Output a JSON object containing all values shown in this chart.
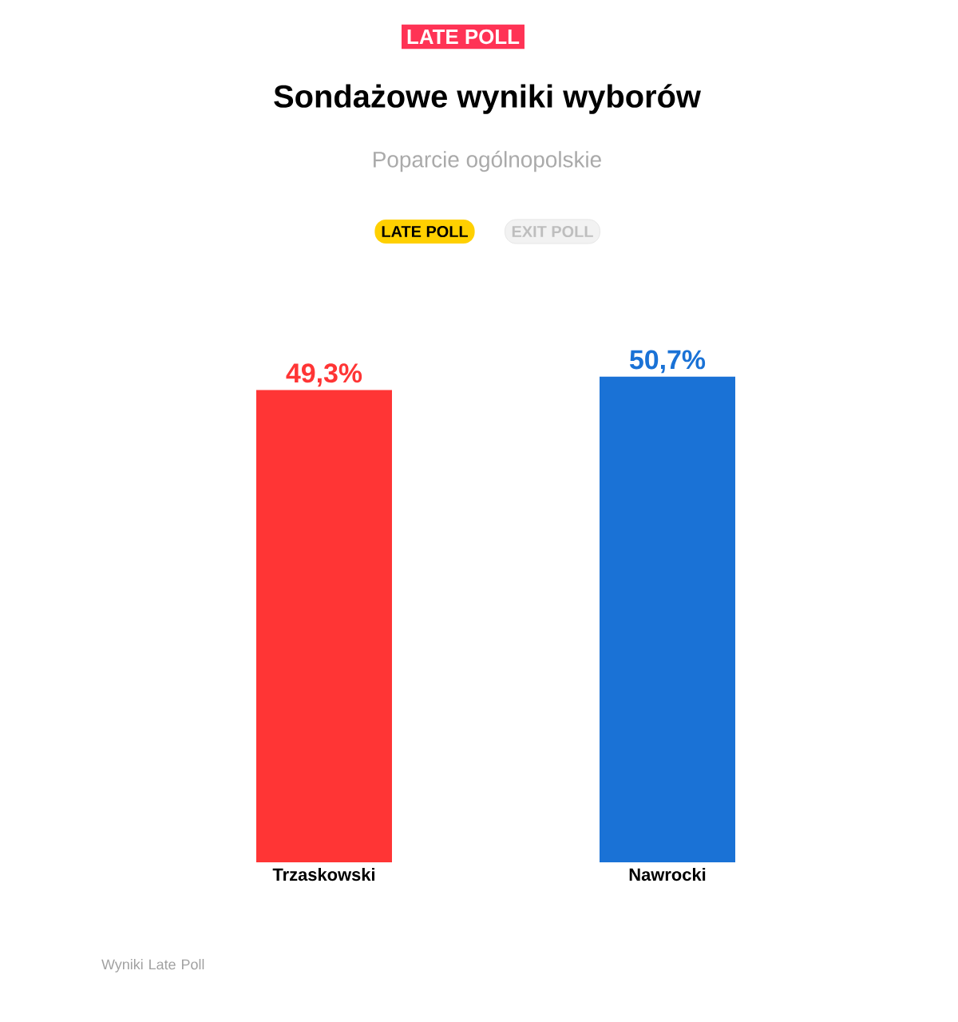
{
  "chart_data": {
    "type": "bar",
    "title": "Sondażowe wyniki wyborów",
    "subtitle": "Poparcie ogólnopolskie",
    "categories": [
      "Trzaskowski",
      "Nawrocki"
    ],
    "values": [
      49.3,
      50.7
    ],
    "colors": [
      "#ff3535",
      "#1a72d6"
    ],
    "value_labels": [
      "49,3%",
      "50,7%"
    ],
    "tick_labels": "x",
    "annotations": [
      "LATE POLL",
      "LATE POLL",
      "EXIT POLL",
      "Wyniki Late Poll"
    ]
  }
}
